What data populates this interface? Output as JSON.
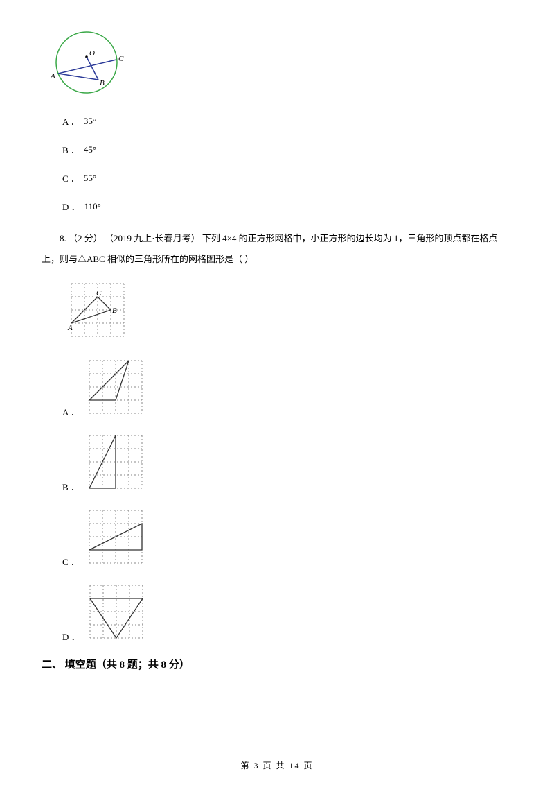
{
  "q7": {
    "circle": {
      "stroke": "#3aa847",
      "line_stroke": "#2b3a98",
      "fill": "#ffffff"
    },
    "options": [
      {
        "label": "A ．",
        "value": "35°"
      },
      {
        "label": "B ．",
        "value": "45°"
      },
      {
        "label": "C ．",
        "value": "55°"
      },
      {
        "label": "D ．",
        "value": "110°"
      }
    ]
  },
  "q8": {
    "text": "8.  （2 分） （2019 九上·长春月考） 下列 4×4 的正方形网格中，小正方形的边长均为 1，三角形的顶点都在格点上，则与△ABC 相似的三角形所在的网格图形是（     ）",
    "grid": {
      "stroke": "#888888",
      "size": 4,
      "cell": 19
    },
    "options": [
      "A ．",
      "B ．",
      "C ．",
      "D ．"
    ]
  },
  "section2": "二、 填空题（共 8 题；共 8 分）",
  "footer": "第  3  页  共  14  页"
}
